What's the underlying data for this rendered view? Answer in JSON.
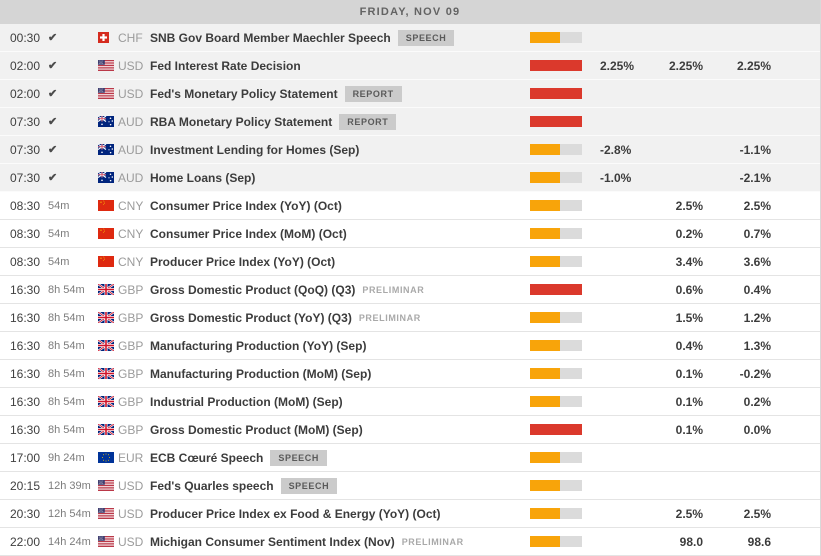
{
  "header": {
    "date": "FRIDAY, NOV 09"
  },
  "colors": {
    "volatility_medium": "#F8A40A",
    "volatility_high": "#DB392C",
    "bar_track": "#DBDBDB",
    "past_row_background": "#F1F1F1"
  },
  "rows": [
    {
      "time": "00:30",
      "status": "done",
      "currency": "CHF",
      "name": "SNB Gov Board Member Maechler Speech",
      "badge": "SPEECH",
      "note": "",
      "volatility": "medium",
      "actual": "",
      "consensus": "",
      "previous": ""
    },
    {
      "time": "02:00",
      "status": "done",
      "currency": "USD",
      "name": "Fed Interest Rate Decision",
      "badge": "",
      "note": "",
      "volatility": "high",
      "actual": "2.25%",
      "consensus": "2.25%",
      "previous": "2.25%"
    },
    {
      "time": "02:00",
      "status": "done",
      "currency": "USD",
      "name": "Fed's Monetary Policy Statement",
      "badge": "REPORT",
      "note": "",
      "volatility": "high",
      "actual": "",
      "consensus": "",
      "previous": ""
    },
    {
      "time": "07:30",
      "status": "done",
      "currency": "AUD",
      "name": "RBA Monetary Policy Statement",
      "badge": "REPORT",
      "note": "",
      "volatility": "high",
      "actual": "",
      "consensus": "",
      "previous": ""
    },
    {
      "time": "07:30",
      "status": "done",
      "currency": "AUD",
      "name": "Investment Lending for Homes (Sep)",
      "badge": "",
      "note": "",
      "volatility": "medium",
      "actual": "-2.8%",
      "consensus": "",
      "previous": "-1.1%"
    },
    {
      "time": "07:30",
      "status": "done",
      "currency": "AUD",
      "name": "Home Loans (Sep)",
      "badge": "",
      "note": "",
      "volatility": "medium",
      "actual": "-1.0%",
      "consensus": "",
      "previous": "-2.1%"
    },
    {
      "time": "08:30",
      "status": "54m",
      "currency": "CNY",
      "name": "Consumer Price Index (YoY) (Oct)",
      "badge": "",
      "note": "",
      "volatility": "medium",
      "actual": "",
      "consensus": "2.5%",
      "previous": "2.5%"
    },
    {
      "time": "08:30",
      "status": "54m",
      "currency": "CNY",
      "name": "Consumer Price Index (MoM) (Oct)",
      "badge": "",
      "note": "",
      "volatility": "medium",
      "actual": "",
      "consensus": "0.2%",
      "previous": "0.7%"
    },
    {
      "time": "08:30",
      "status": "54m",
      "currency": "CNY",
      "name": "Producer Price Index (YoY) (Oct)",
      "badge": "",
      "note": "",
      "volatility": "medium",
      "actual": "",
      "consensus": "3.4%",
      "previous": "3.6%"
    },
    {
      "time": "16:30",
      "status": "8h 54m",
      "currency": "GBP",
      "name": "Gross Domestic Product (QoQ) (Q3)",
      "badge": "",
      "note": "PRELIMINAR",
      "volatility": "high",
      "actual": "",
      "consensus": "0.6%",
      "previous": "0.4%"
    },
    {
      "time": "16:30",
      "status": "8h 54m",
      "currency": "GBP",
      "name": "Gross Domestic Product (YoY) (Q3)",
      "badge": "",
      "note": "PRELIMINAR",
      "volatility": "medium",
      "actual": "",
      "consensus": "1.5%",
      "previous": "1.2%"
    },
    {
      "time": "16:30",
      "status": "8h 54m",
      "currency": "GBP",
      "name": "Manufacturing Production (YoY) (Sep)",
      "badge": "",
      "note": "",
      "volatility": "medium",
      "actual": "",
      "consensus": "0.4%",
      "previous": "1.3%"
    },
    {
      "time": "16:30",
      "status": "8h 54m",
      "currency": "GBP",
      "name": "Manufacturing Production (MoM) (Sep)",
      "badge": "",
      "note": "",
      "volatility": "medium",
      "actual": "",
      "consensus": "0.1%",
      "previous": "-0.2%"
    },
    {
      "time": "16:30",
      "status": "8h 54m",
      "currency": "GBP",
      "name": "Industrial Production (MoM) (Sep)",
      "badge": "",
      "note": "",
      "volatility": "medium",
      "actual": "",
      "consensus": "0.1%",
      "previous": "0.2%"
    },
    {
      "time": "16:30",
      "status": "8h 54m",
      "currency": "GBP",
      "name": "Gross Domestic Product (MoM) (Sep)",
      "badge": "",
      "note": "",
      "volatility": "high",
      "actual": "",
      "consensus": "0.1%",
      "previous": "0.0%"
    },
    {
      "time": "17:00",
      "status": "9h 24m",
      "currency": "EUR",
      "name": "ECB Cœuré Speech",
      "badge": "SPEECH",
      "note": "",
      "volatility": "medium",
      "actual": "",
      "consensus": "",
      "previous": ""
    },
    {
      "time": "20:15",
      "status": "12h 39m",
      "currency": "USD",
      "name": "Fed's Quarles speech",
      "badge": "SPEECH",
      "note": "",
      "volatility": "medium",
      "actual": "",
      "consensus": "",
      "previous": ""
    },
    {
      "time": "20:30",
      "status": "12h 54m",
      "currency": "USD",
      "name": "Producer Price Index ex Food & Energy (YoY) (Oct)",
      "badge": "",
      "note": "",
      "volatility": "medium",
      "actual": "",
      "consensus": "2.5%",
      "previous": "2.5%"
    },
    {
      "time": "22:00",
      "status": "14h 24m",
      "currency": "USD",
      "name": "Michigan Consumer Sentiment Index (Nov)",
      "badge": "",
      "note": "PRELIMINAR",
      "volatility": "medium",
      "actual": "",
      "consensus": "98.0",
      "previous": "98.6"
    }
  ]
}
